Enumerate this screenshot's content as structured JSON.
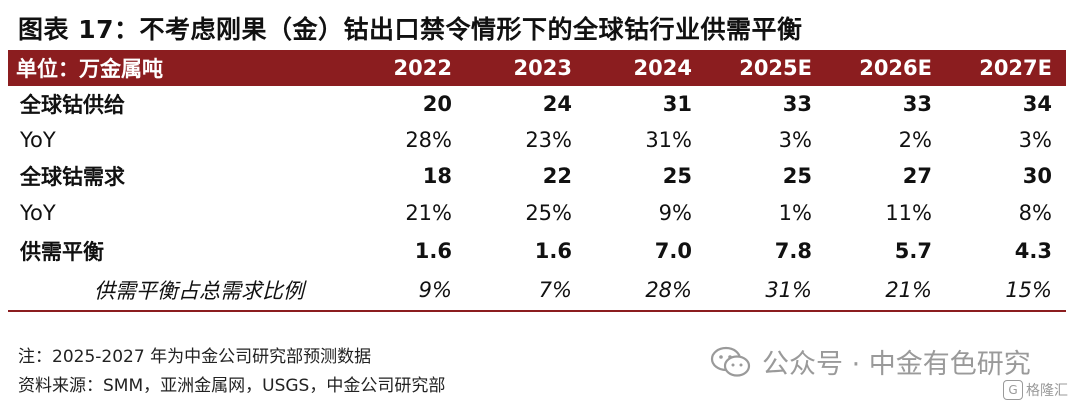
{
  "title": "图表 17：不考虑刚果（金）钴出口禁令情形下的全球钴行业供需平衡",
  "header": {
    "unit_label": "单位：万金属吨",
    "years": [
      "2022",
      "2023",
      "2024",
      "2025E",
      "2026E",
      "2027E"
    ]
  },
  "rows": [
    {
      "label": "全球钴供给",
      "values": [
        "20",
        "24",
        "31",
        "33",
        "33",
        "34"
      ]
    },
    {
      "label": "YoY",
      "values": [
        "28%",
        "23%",
        "31%",
        "3%",
        "2%",
        "3%"
      ]
    },
    {
      "label": "全球钴需求",
      "values": [
        "18",
        "22",
        "25",
        "25",
        "27",
        "30"
      ]
    },
    {
      "label": "YoY",
      "values": [
        "21%",
        "25%",
        "9%",
        "1%",
        "11%",
        "8%"
      ]
    },
    {
      "label": "供需平衡",
      "values": [
        "1.6",
        "1.6",
        "7.0",
        "7.8",
        "5.7",
        "4.3"
      ]
    },
    {
      "label": "供需平衡占总需求比例",
      "values": [
        "9%",
        "7%",
        "28%",
        "31%",
        "21%",
        "15%"
      ]
    }
  ],
  "notes": {
    "note": "注：2025-2027 年为中金公司研究部预测数据",
    "source": "资料来源：SMM，亚洲金属网，USGS，中金公司研究部"
  },
  "watermark": {
    "text": "公众号 · 中金有色研究",
    "badge": "格隆汇",
    "icon": "wechat-icon"
  },
  "colors": {
    "header_bg": "#8b1d1f"
  }
}
